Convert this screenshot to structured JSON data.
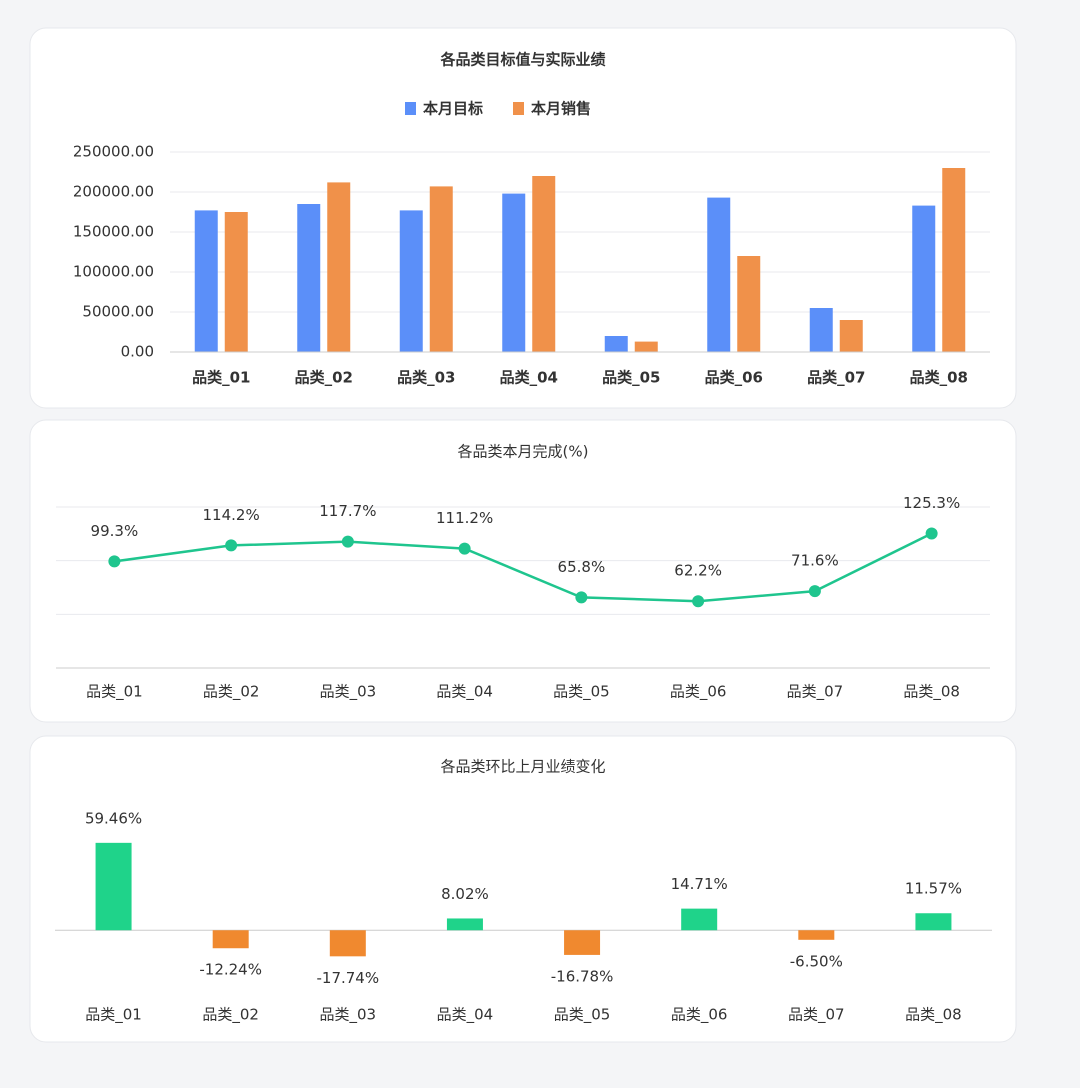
{
  "chart_data": [
    {
      "type": "grouped-bar",
      "title": "各品类目标值与实际业绩",
      "categories": [
        "品类_01",
        "品类_02",
        "品类_03",
        "品类_04",
        "品类_05",
        "品类_06",
        "品类_07",
        "品类_08"
      ],
      "series": [
        {
          "name": "本月目标",
          "color": "#5b8ff9",
          "values": [
            177000,
            185000,
            177000,
            198000,
            20000,
            193000,
            55000,
            183000
          ]
        },
        {
          "name": "本月销售",
          "color": "#f0914a",
          "values": [
            175000,
            212000,
            207000,
            220000,
            13000,
            120000,
            40000,
            230000
          ]
        }
      ],
      "ylim": [
        0,
        250000
      ],
      "yticks": [
        {
          "value": 0,
          "label": "0.00"
        },
        {
          "value": 50000,
          "label": "50000.00"
        },
        {
          "value": 100000,
          "label": "100000.00"
        },
        {
          "value": 150000,
          "label": "150000.00"
        },
        {
          "value": 200000,
          "label": "200000.00"
        },
        {
          "value": 250000,
          "label": "250000.00"
        }
      ],
      "grid": true,
      "legend": "top"
    },
    {
      "type": "line",
      "title": "各品类本月完成(%)",
      "categories": [
        "品类_01",
        "品类_02",
        "品类_03",
        "品类_04",
        "品类_05",
        "品类_06",
        "品类_07",
        "品类_08"
      ],
      "values": [
        99.3,
        114.2,
        117.7,
        111.2,
        65.8,
        62.2,
        71.6,
        125.3
      ],
      "value_labels": [
        "99.3%",
        "114.2%",
        "117.7%",
        "111.2%",
        "65.8%",
        "62.2%",
        "71.6%",
        "125.3%"
      ],
      "color": "#1fc58e",
      "ylim": [
        0,
        150
      ],
      "yticks": [
        0,
        50,
        100,
        150
      ],
      "ytick_labels": false,
      "grid": true
    },
    {
      "type": "signed-bar",
      "title": "各品类环比上月业绩变化",
      "categories": [
        "品类_01",
        "品类_02",
        "品类_03",
        "品类_04",
        "品类_05",
        "品类_06",
        "品类_07",
        "品类_08"
      ],
      "values": [
        59.46,
        -12.24,
        -17.74,
        8.02,
        -16.78,
        14.71,
        -6.5,
        11.57
      ],
      "value_labels": [
        "59.46%",
        "-12.24%",
        "-17.74%",
        "8.02%",
        "-16.78%",
        "14.71%",
        "-6.50%",
        "11.57%"
      ],
      "positive_color": "#1fd38a",
      "negative_color": "#f0892f",
      "ylim": [
        -25,
        75
      ]
    }
  ]
}
